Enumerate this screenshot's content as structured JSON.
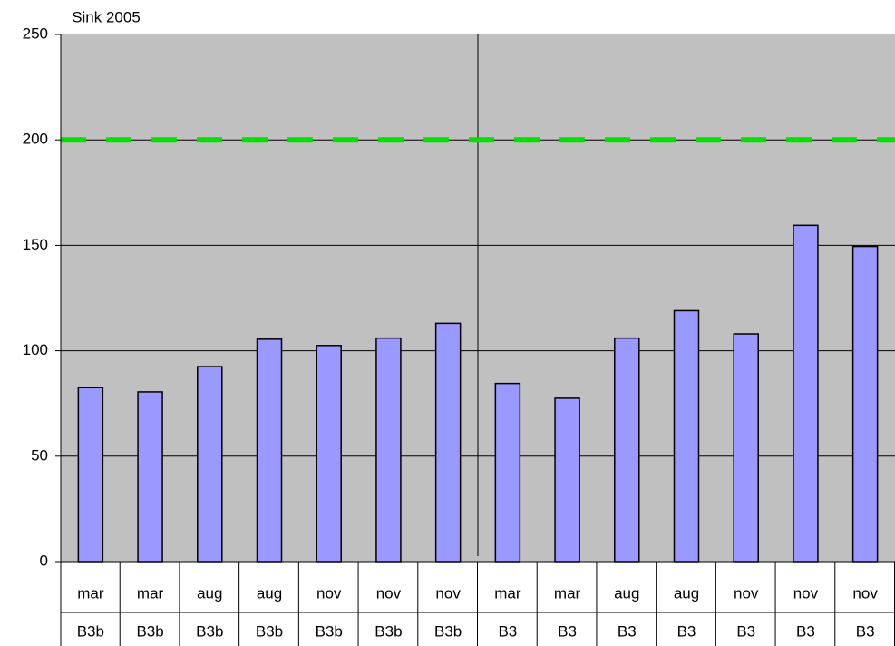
{
  "chart_data": {
    "type": "bar",
    "title": "Sink 2005",
    "categories": [
      "mar",
      "mar",
      "aug",
      "aug",
      "nov",
      "nov",
      "nov",
      "mar",
      "mar",
      "aug",
      "aug",
      "nov",
      "nov",
      "nov"
    ],
    "sub_categories": [
      "B3b",
      "B3b",
      "B3b",
      "B3b",
      "B3b",
      "B3b",
      "B3b",
      "B3",
      "B3",
      "B3",
      "B3",
      "B3",
      "B3",
      "B3"
    ],
    "values": [
      82.5,
      80.5,
      92.5,
      105.5,
      102.5,
      106,
      113,
      84.5,
      77.5,
      106,
      119,
      108,
      159.5,
      149.5
    ],
    "color": "#9999ff",
    "ylim": [
      0,
      250
    ],
    "yticks": [
      0,
      50,
      100,
      150,
      200,
      250
    ],
    "grid": true,
    "reference_line": {
      "value": 200,
      "color": "#00e000"
    }
  }
}
